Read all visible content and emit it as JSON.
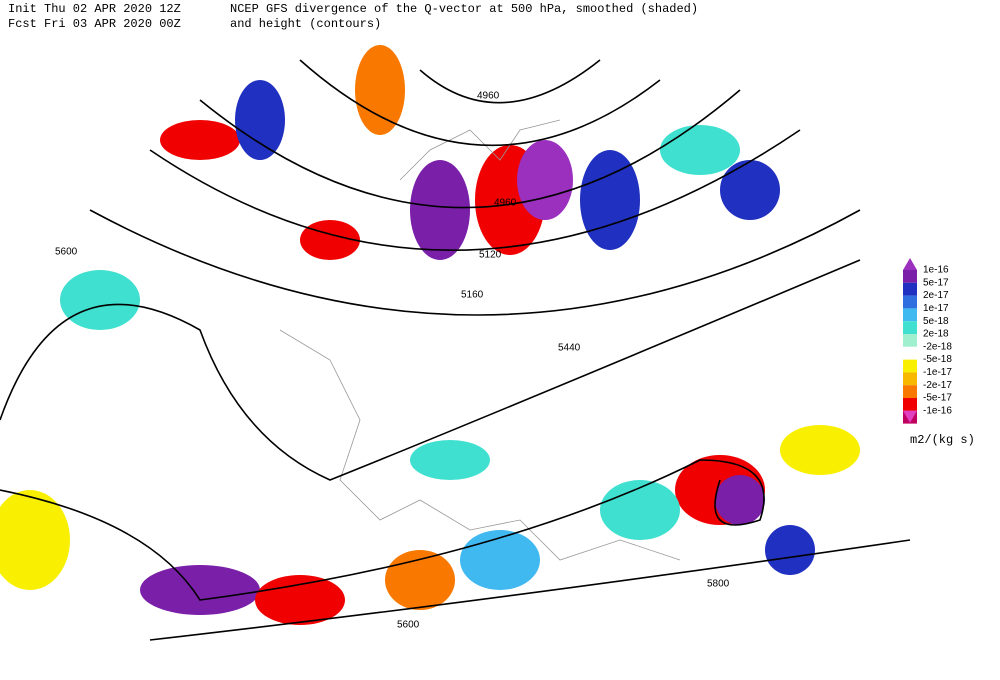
{
  "header": {
    "init": "Init  Thu 02 APR 2020 12Z",
    "fcst": "Fcst Fri 03 APR 2020 00Z",
    "title": "NCEP GFS divergence of the Q-vector at 500 hPa, smoothed (shaded)",
    "subtitle": "and height (contours)"
  },
  "contour_labels": [
    "4960",
    "4960",
    "5120",
    "5160",
    "5440",
    "5600",
    "5800",
    "5600"
  ],
  "colorbar": {
    "labels": [
      "1e-16",
      "5e-17",
      "2e-17",
      "1e-17",
      "5e-18",
      "2e-18",
      "-2e-18",
      "-5e-18",
      "-1e-17",
      "-2e-17",
      "-5e-17",
      "-1e-16"
    ],
    "colors": [
      "#9b2fbe",
      "#7a1fa8",
      "#2030c0",
      "#2f6fe0",
      "#40b8f0",
      "#40e0d0",
      "#a0f0d0",
      "#ffffff",
      "#f8f000",
      "#f8b800",
      "#f87800",
      "#f00000",
      "#c00060",
      "#e040c0"
    ],
    "unit": "m2/(kg s)"
  }
}
